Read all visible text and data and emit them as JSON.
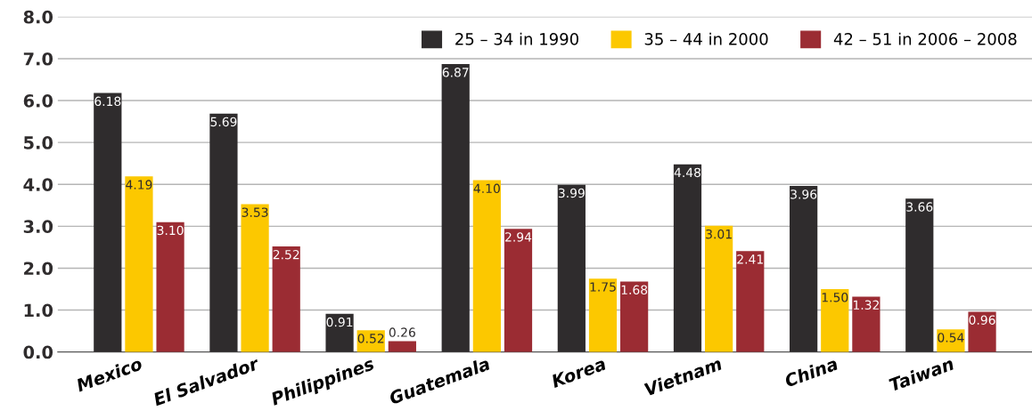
{
  "chart_data": {
    "type": "bar",
    "categories": [
      "Mexico",
      "El Salvador",
      "Philippines",
      "Guatemala",
      "Korea",
      "Vietnam",
      "China",
      "Taiwan"
    ],
    "series": [
      {
        "name": "25 – 34 in 1990",
        "color": "#2f2c2d",
        "values": [
          6.18,
          5.69,
          0.91,
          6.87,
          3.99,
          4.48,
          3.96,
          3.66
        ],
        "value_labels": [
          "6.18",
          "5.69",
          "0.91",
          "6.87",
          "3.99",
          "4.48",
          "3.96",
          "3.66"
        ]
      },
      {
        "name": "35 – 44 in 2000",
        "color": "#fcc800",
        "values": [
          4.19,
          3.53,
          0.52,
          4.1,
          1.75,
          3.01,
          1.5,
          0.54
        ],
        "value_labels": [
          "4.19",
          "3.53",
          "0.52",
          "4.10",
          "1.75",
          "3.01",
          "1.50",
          "0.54"
        ]
      },
      {
        "name": "42 – 51 in 2006 – 2008",
        "color": "#9b2c33",
        "values": [
          3.1,
          2.52,
          0.26,
          2.94,
          1.68,
          2.41,
          1.32,
          0.96
        ],
        "value_labels": [
          "3.10",
          "2.52",
          "0.26",
          "2.94",
          "1.68",
          "2.41",
          "1.32",
          "0.96"
        ]
      }
    ],
    "ylim": [
      0,
      8
    ],
    "yticks": [
      {
        "value": 0,
        "label": "0.0"
      },
      {
        "value": 1,
        "label": "1.0"
      },
      {
        "value": 2,
        "label": "2.0"
      },
      {
        "value": 3,
        "label": "3.0"
      },
      {
        "value": 4,
        "label": "4.0"
      },
      {
        "value": 5,
        "label": "5.0"
      },
      {
        "value": 6,
        "label": "6.0"
      },
      {
        "value": 7,
        "label": "7.0"
      },
      {
        "value": 8,
        "label": "8.0"
      }
    ],
    "grid": "y",
    "legend": "top right"
  }
}
